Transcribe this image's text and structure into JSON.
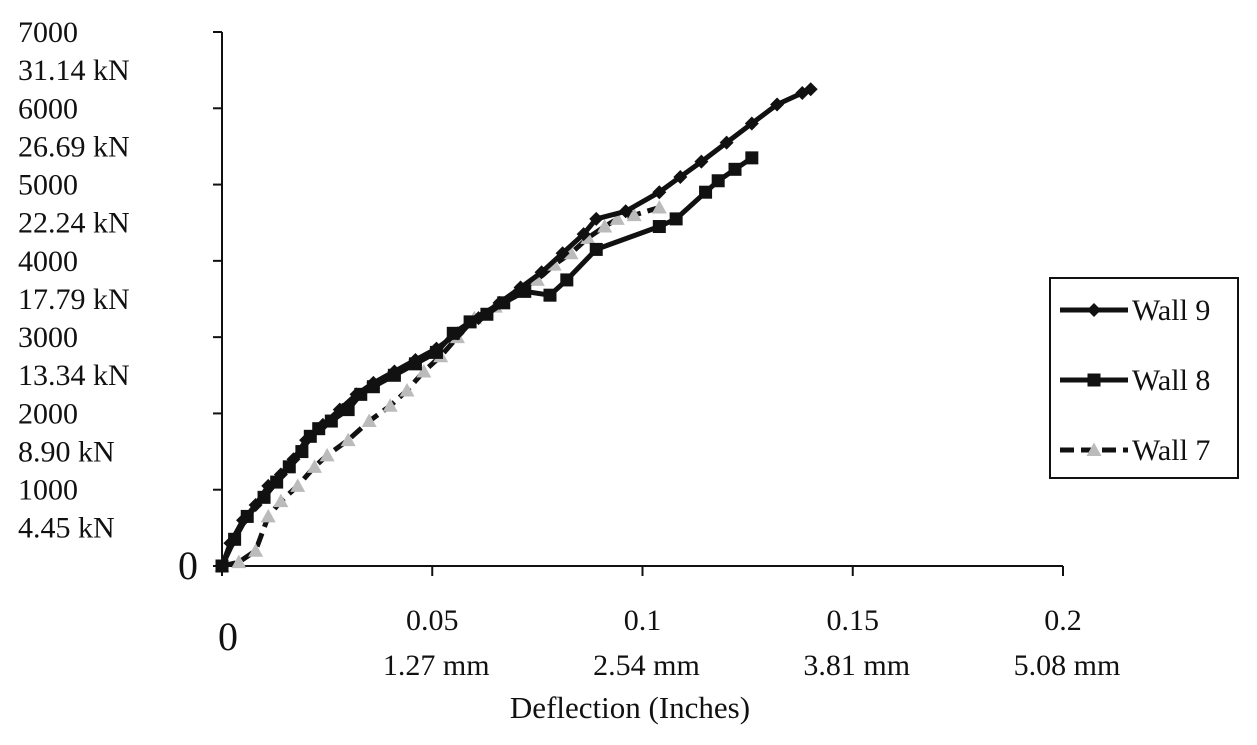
{
  "chart_data": {
    "type": "line",
    "title": "",
    "xlabel": "Deflection (Inches)",
    "ylabel": "",
    "xlim": [
      0,
      0.2
    ],
    "ylim": [
      0,
      7000
    ],
    "x_ticks": [
      {
        "value": 0,
        "label": "0",
        "sublabel": ""
      },
      {
        "value": 0.05,
        "label": "0.05",
        "sublabel": "1.27 mm"
      },
      {
        "value": 0.1,
        "label": "0.1",
        "sublabel": "2.54 mm"
      },
      {
        "value": 0.15,
        "label": "0.15",
        "sublabel": "3.81 mm"
      },
      {
        "value": 0.2,
        "label": "0.2",
        "sublabel": "5.08 mm"
      }
    ],
    "y_ticks": [
      {
        "value": 0,
        "label": "0",
        "sublabel": ""
      },
      {
        "value": 1000,
        "label": "1000",
        "sublabel": "4.45 kN"
      },
      {
        "value": 2000,
        "label": "2000",
        "sublabel": "8.90 kN"
      },
      {
        "value": 3000,
        "label": "3000",
        "sublabel": "13.34 kN"
      },
      {
        "value": 4000,
        "label": "4000",
        "sublabel": "17.79 kN"
      },
      {
        "value": 5000,
        "label": "5000",
        "sublabel": "22.24 kN"
      },
      {
        "value": 6000,
        "label": "6000",
        "sublabel": "26.69 kN"
      },
      {
        "value": 7000,
        "label": "7000",
        "sublabel": "31.14 kN"
      }
    ],
    "grid": false,
    "legend": "right",
    "series": [
      {
        "name": "Wall 9",
        "marker": "diamond",
        "color": "#111111",
        "dash": "solid",
        "x": [
          0,
          0.002,
          0.005,
          0.008,
          0.011,
          0.014,
          0.017,
          0.02,
          0.024,
          0.028,
          0.032,
          0.036,
          0.041,
          0.046,
          0.051,
          0.056,
          0.061,
          0.066,
          0.071,
          0.076,
          0.081,
          0.086,
          0.089,
          0.096,
          0.104,
          0.109,
          0.114,
          0.12,
          0.126,
          0.132,
          0.138,
          0.14
        ],
        "y": [
          0,
          300,
          600,
          800,
          1050,
          1200,
          1400,
          1650,
          1850,
          2050,
          2250,
          2400,
          2550,
          2700,
          2850,
          3050,
          3250,
          3450,
          3650,
          3850,
          4100,
          4350,
          4550,
          4650,
          4900,
          5100,
          5300,
          5550,
          5800,
          6050,
          6200,
          6250
        ]
      },
      {
        "name": "Wall 8",
        "marker": "square",
        "color": "#111111",
        "dash": "solid",
        "x": [
          0,
          0.003,
          0.006,
          0.01,
          0.013,
          0.016,
          0.019,
          0.021,
          0.023,
          0.026,
          0.03,
          0.033,
          0.036,
          0.041,
          0.046,
          0.051,
          0.055,
          0.059,
          0.063,
          0.067,
          0.072,
          0.078,
          0.082,
          0.089,
          0.104,
          0.108,
          0.115,
          0.118,
          0.122,
          0.126
        ],
        "y": [
          0,
          350,
          650,
          900,
          1100,
          1300,
          1500,
          1700,
          1800,
          1900,
          2050,
          2250,
          2350,
          2500,
          2650,
          2800,
          3050,
          3200,
          3300,
          3450,
          3600,
          3550,
          3750,
          4150,
          4450,
          4550,
          4900,
          5050,
          5200,
          5350
        ]
      },
      {
        "name": "Wall 7",
        "marker": "triangle",
        "color": "#bbbbbb",
        "dash": "dashed",
        "x": [
          0,
          0.004,
          0.008,
          0.011,
          0.014,
          0.018,
          0.022,
          0.025,
          0.03,
          0.035,
          0.04,
          0.044,
          0.048,
          0.052,
          0.056,
          0.06,
          0.065,
          0.07,
          0.075,
          0.079,
          0.083,
          0.087,
          0.091,
          0.094,
          0.098,
          0.104
        ],
        "y": [
          0,
          50,
          200,
          650,
          850,
          1050,
          1300,
          1450,
          1650,
          1900,
          2100,
          2300,
          2550,
          2750,
          3000,
          3250,
          3400,
          3600,
          3750,
          3950,
          4100,
          4300,
          4450,
          4550,
          4600,
          4700
        ]
      }
    ]
  }
}
